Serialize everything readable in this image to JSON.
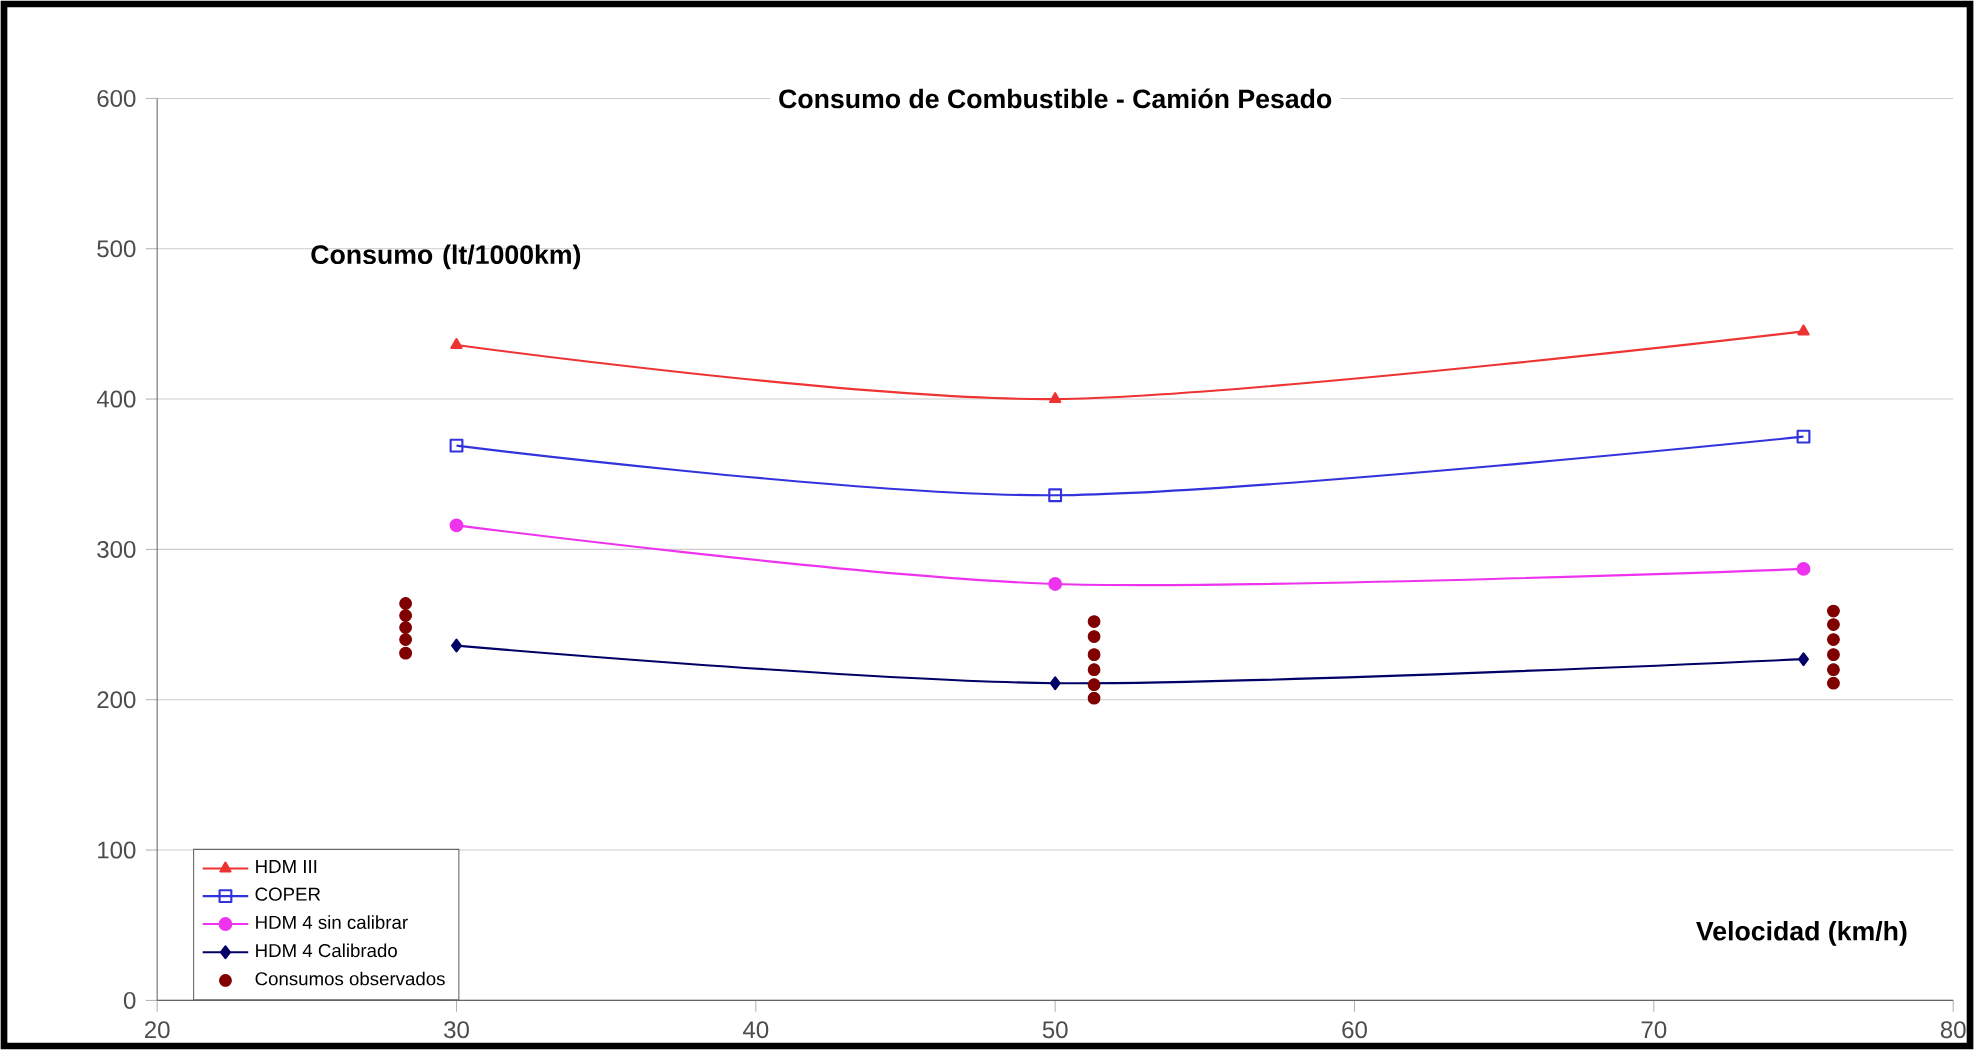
{
  "chart_data": {
    "type": "line",
    "title": "Consumo de Combustible - Camión Pesado",
    "xlabel": "Velocidad (km/h)",
    "ylabel": "Consumo (lt/1000km)",
    "xlim": [
      20,
      80
    ],
    "xticks": [
      20,
      30,
      40,
      50,
      60,
      70,
      80
    ],
    "ylim": [
      0,
      600
    ],
    "yticks": [
      0,
      100,
      200,
      300,
      400,
      500,
      600
    ],
    "grid": "y",
    "legend": "bottom left",
    "series": [
      {
        "name": "HDM III",
        "color": "#ee3333",
        "marker": "triangle",
        "x": [
          30,
          50,
          75
        ],
        "values": [
          436,
          400,
          445
        ]
      },
      {
        "name": "COPER",
        "color": "#3333dd",
        "marker": "square",
        "x": [
          30,
          50,
          75
        ],
        "values": [
          369,
          336,
          375
        ]
      },
      {
        "name": "HDM 4 sin calibrar",
        "color": "#ee33ee",
        "marker": "circle",
        "x": [
          30,
          50,
          75
        ],
        "values": [
          316,
          277,
          287
        ]
      },
      {
        "name": "HDM 4 Calibrado",
        "color": "#000066",
        "marker": "diamond",
        "x": [
          30,
          50,
          75
        ],
        "values": [
          236,
          211,
          227
        ]
      },
      {
        "name": "Consumos observados",
        "type": "scatter",
        "color": "#800000",
        "marker": "circle",
        "x": [
          28.3,
          28.3,
          28.3,
          28.3,
          28.3,
          51.3,
          51.3,
          51.3,
          51.3,
          51.3,
          51.3,
          76,
          76,
          76,
          76,
          76,
          76
        ],
        "values": [
          231,
          240,
          248,
          256,
          264,
          201,
          210,
          220,
          230,
          242,
          252,
          211,
          220,
          230,
          240,
          250,
          259
        ]
      }
    ]
  }
}
